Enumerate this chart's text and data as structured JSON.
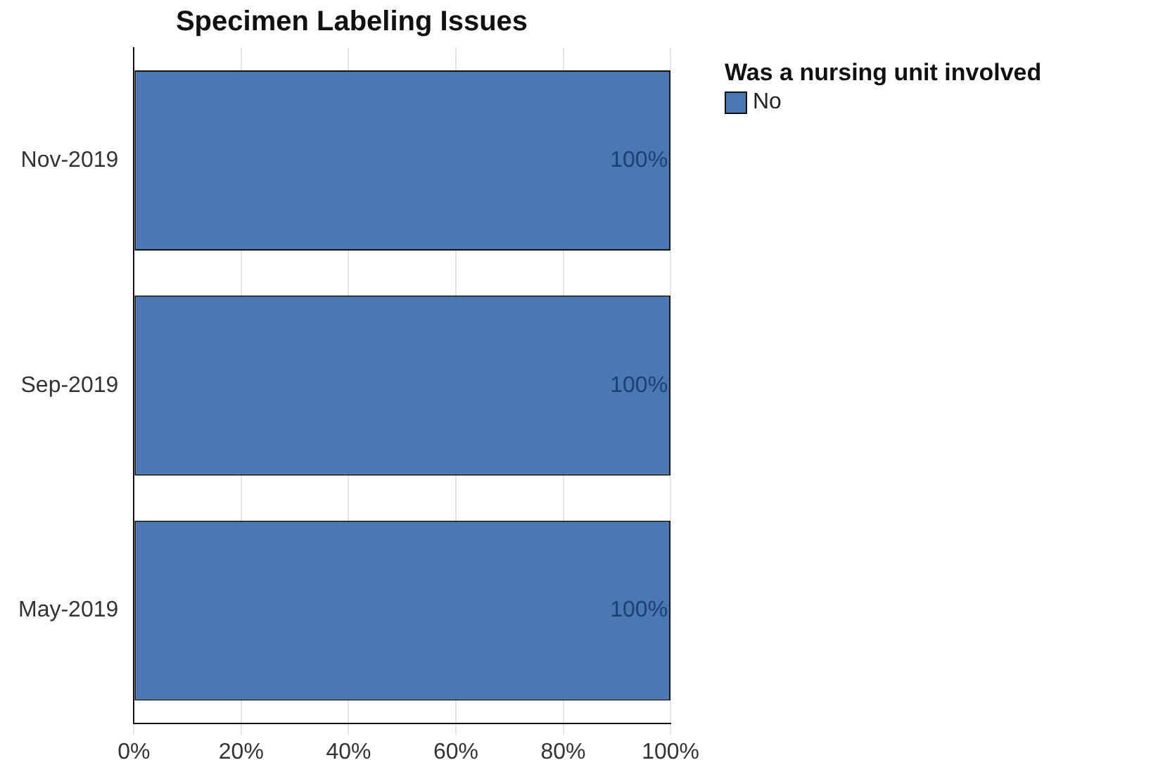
{
  "chart_data": {
    "type": "bar",
    "orientation": "horizontal",
    "title": "Specimen Labeling Issues",
    "legend_title": "Was a nursing unit involved",
    "categories": [
      "Nov-2019",
      "Sep-2019",
      "May-2019"
    ],
    "series": [
      {
        "name": "No",
        "color": "#4a78b5",
        "values": [
          100,
          100,
          100
        ],
        "value_labels": [
          "100%",
          "100%",
          "100%"
        ]
      }
    ],
    "xlim": [
      0,
      100
    ],
    "xticks": [
      {
        "value": 0,
        "label": "0%"
      },
      {
        "value": 20,
        "label": "20%"
      },
      {
        "value": 40,
        "label": "40%"
      },
      {
        "value": 60,
        "label": "60%"
      },
      {
        "value": 80,
        "label": "80%"
      },
      {
        "value": 100,
        "label": "100%"
      }
    ],
    "grid": "x",
    "legend": "top right"
  }
}
